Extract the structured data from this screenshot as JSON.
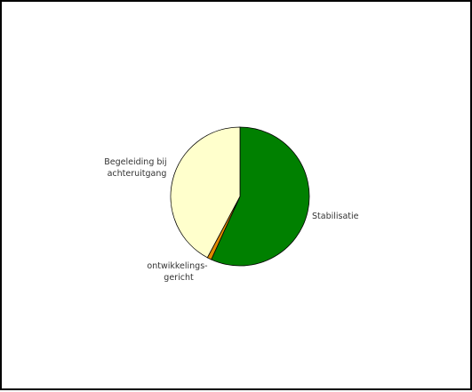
{
  "chart_data": {
    "type": "pie",
    "title": "",
    "slices": [
      {
        "label": "Stabilisatie",
        "value": 56.8,
        "color": "#008000"
      },
      {
        "label": "ontwikkelings-gericht",
        "value": 1.0,
        "color": "#e08a00"
      },
      {
        "label": "Begeleiding bij achteruitgang",
        "value": 42.2,
        "color": "#ffffcc"
      }
    ],
    "legend": "none"
  }
}
